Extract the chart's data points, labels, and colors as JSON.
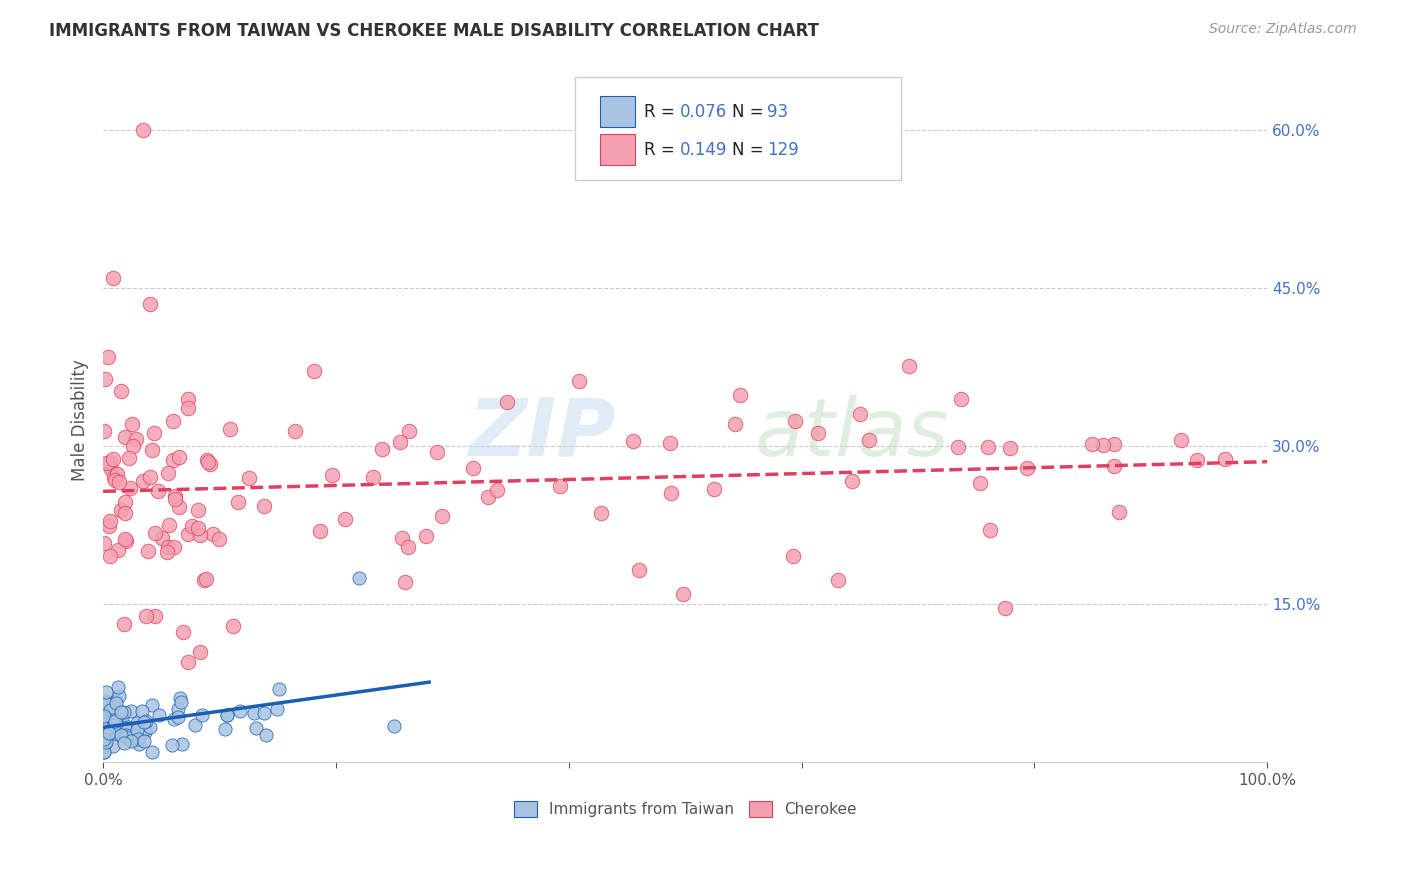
{
  "title": "IMMIGRANTS FROM TAIWAN VS CHEROKEE MALE DISABILITY CORRELATION CHART",
  "source": "Source: ZipAtlas.com",
  "ylabel": "Male Disability",
  "xlim": [
    0.0,
    1.0
  ],
  "ylim": [
    0.0,
    0.65
  ],
  "taiwan_color": "#a8c4e0",
  "cherokee_color": "#f4a0b0",
  "taiwan_line_color": "#1a5fb4",
  "cherokee_line_color": "#e04060",
  "legend_R_taiwan": "0.076",
  "legend_N_taiwan": "93",
  "legend_R_cherokee": "0.149",
  "legend_N_cherokee": "129"
}
